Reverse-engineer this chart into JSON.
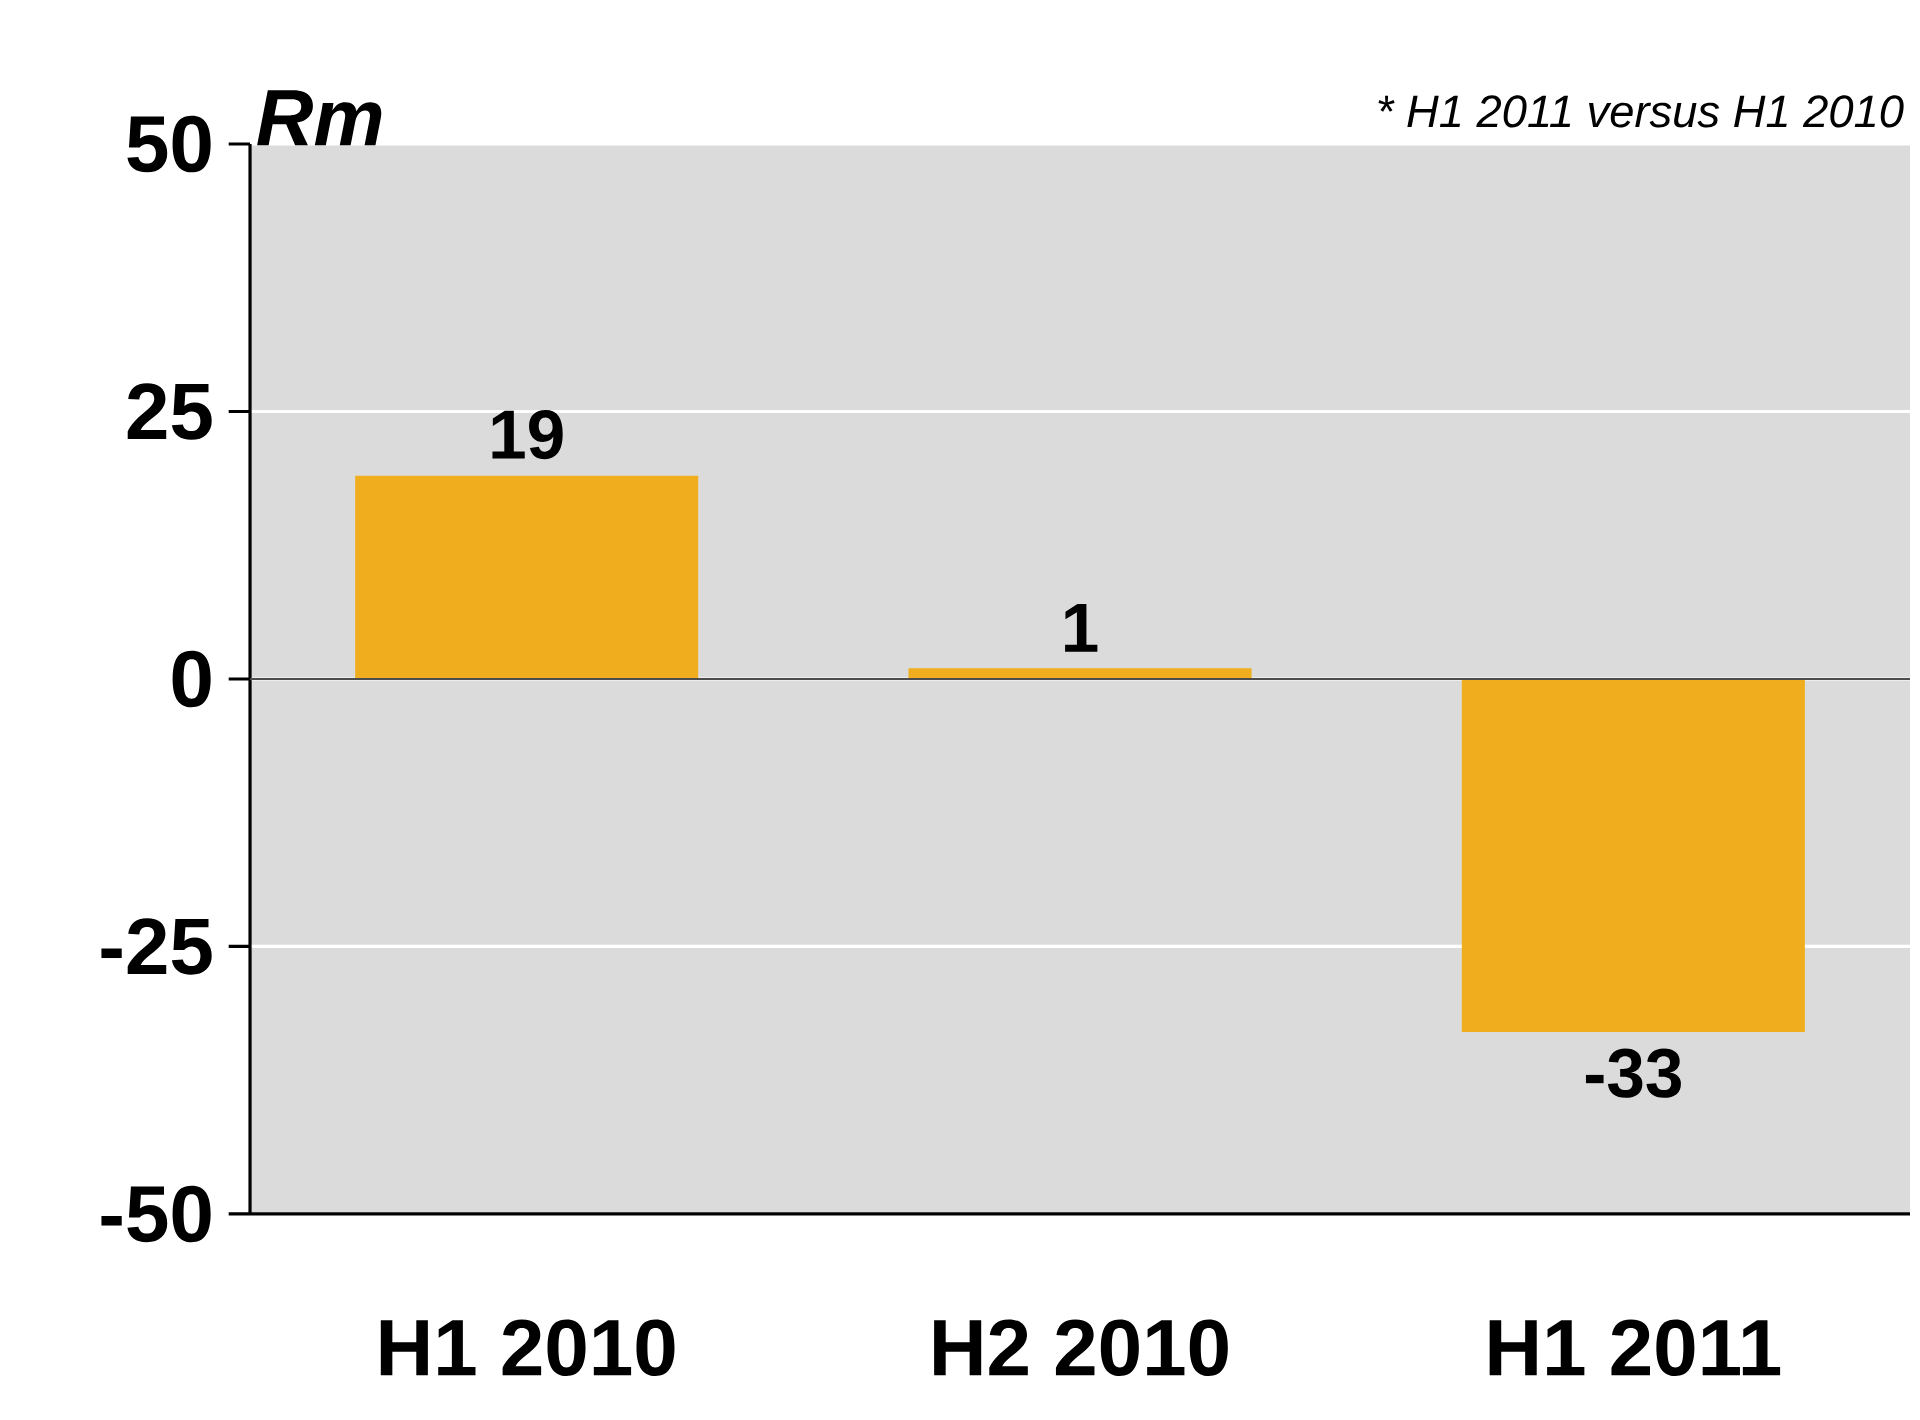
{
  "chart_data": {
    "type": "bar",
    "ylabel": "Rm",
    "annotations": [
      "* H1 2011 versus H1 2010"
    ],
    "categories": [
      "H1 2010",
      "H2 2010",
      "H1 2011"
    ],
    "values": [
      19,
      1,
      -33
    ],
    "color": "#f0ae1e",
    "ylim": [
      -50,
      50
    ],
    "yticks": [
      -50,
      -25,
      0,
      25,
      50
    ],
    "grid": "y",
    "data_labels": true
  }
}
